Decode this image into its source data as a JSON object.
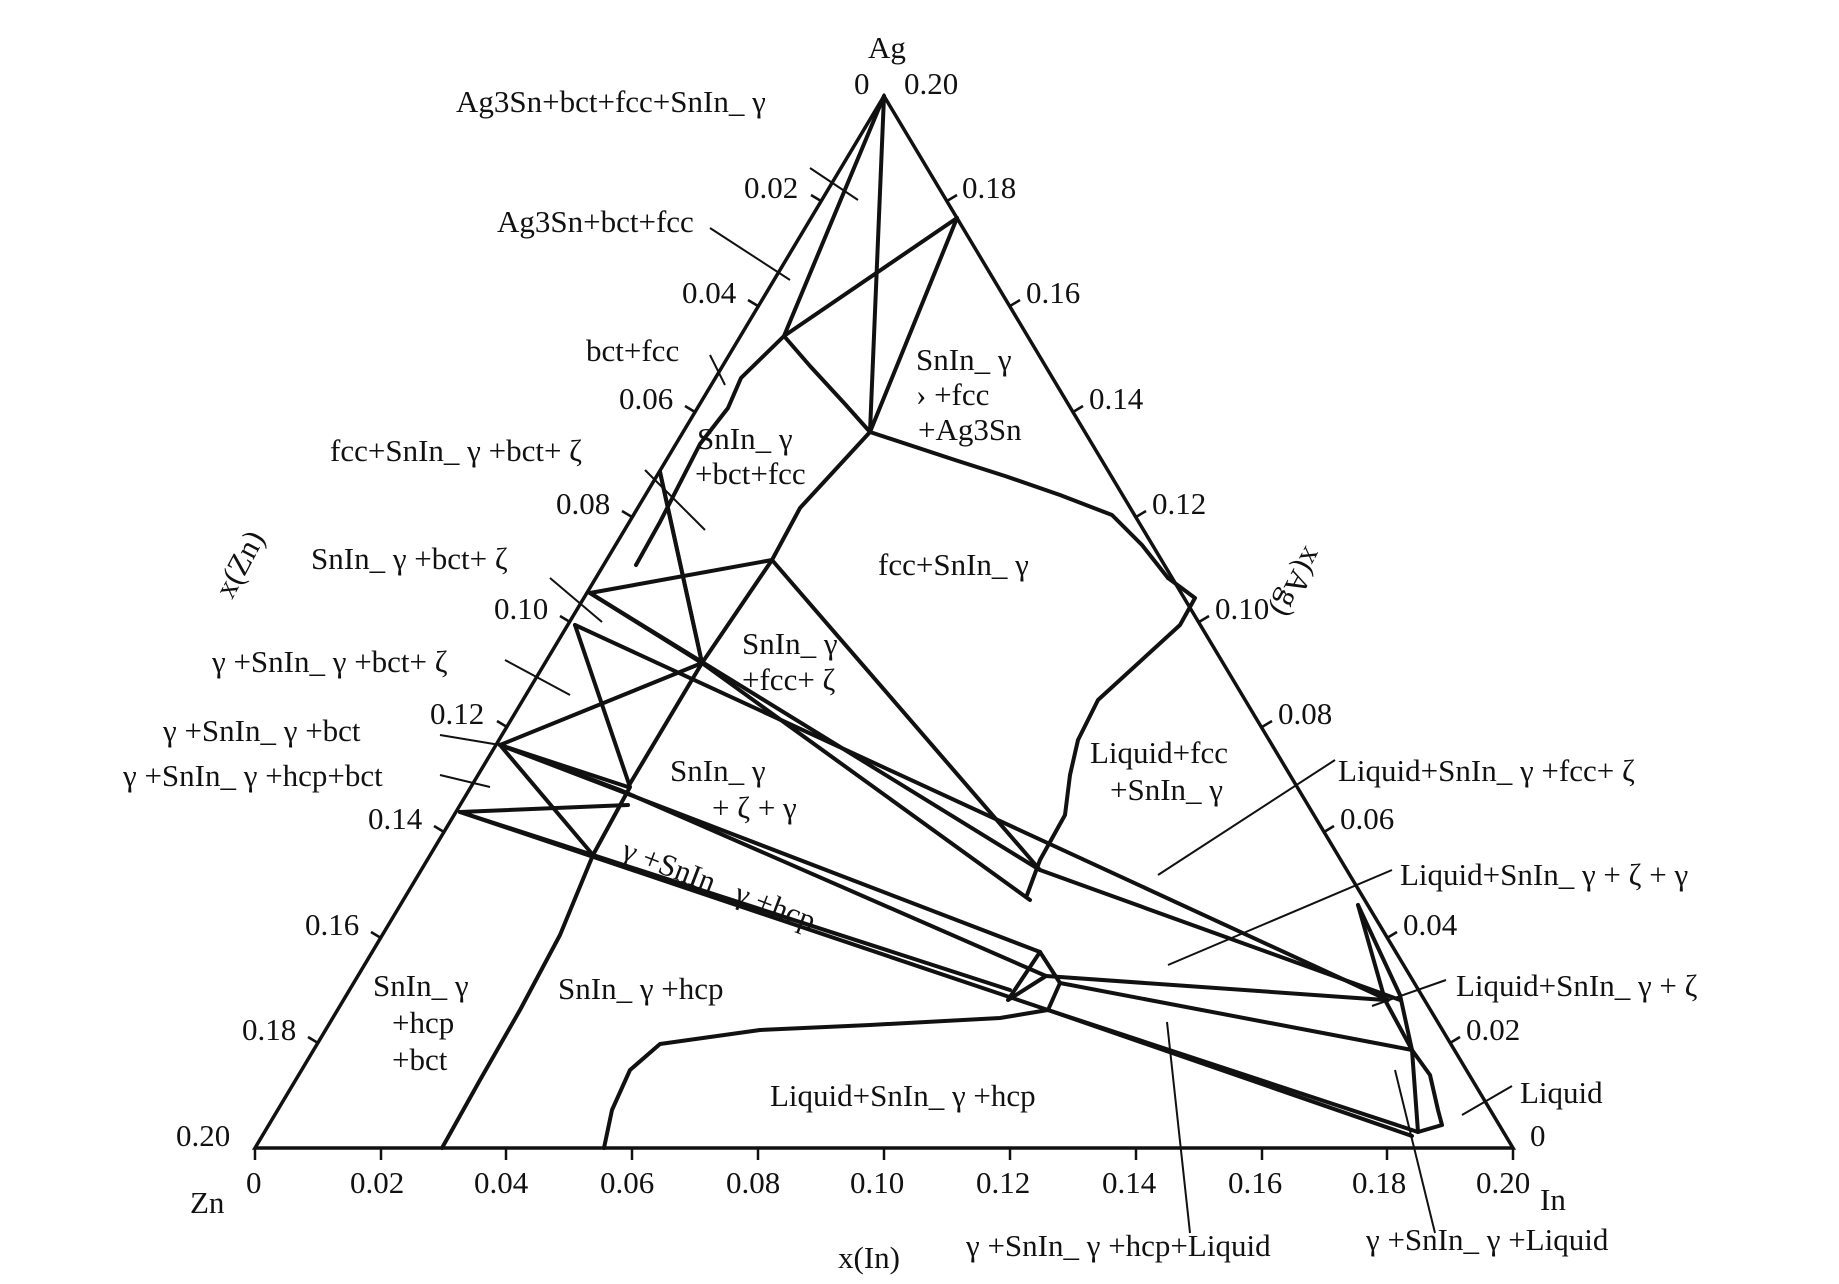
{
  "corners": {
    "top": "Ag",
    "left": "Zn",
    "right": "In"
  },
  "axis_titles": {
    "bottom": "x(In)",
    "left": "x(Zn)",
    "right": "x(Ag)"
  },
  "ticks": {
    "bottom": [
      "0",
      "0.02",
      "0.04",
      "0.06",
      "0.08",
      "0.10",
      "0.12",
      "0.14",
      "0.16",
      "0.18",
      "0.20"
    ],
    "left": [
      "0",
      "0.02",
      "0.04",
      "0.06",
      "0.08",
      "0.10",
      "0.12",
      "0.14",
      "0.16",
      "0.18",
      "0.20"
    ],
    "right": [
      "0.20",
      "0.18",
      "0.16",
      "0.14",
      "0.12",
      "0.10",
      "0.08",
      "0.06",
      "0.04",
      "0.02",
      "0"
    ]
  },
  "regions": {
    "ag3sn_bct_fcc_snin_gamma": "Ag3Sn+bct+fcc+SnIn_ γ",
    "ag3sn_bct_fcc": "Ag3Sn+bct+fcc",
    "bct_fcc": "bct+fcc",
    "fcc_snin_bct_zeta": "fcc+SnIn_ γ +bct+ ζ",
    "snin_bct_zeta": "SnIn_ γ +bct+ ζ",
    "g_snin_bct_zeta": "γ +SnIn_ γ +bct+ ζ",
    "g_snin_bct": "γ +SnIn_ γ +bct",
    "g_snin_hcp_bct": "γ +SnIn_ γ +hcp+bct",
    "snin_fcc_ag3sn": [
      "SnIn_ γ",
      "› +fcc",
      "+Ag3Sn"
    ],
    "snin_bct_fcc": [
      "SnIn_ γ",
      "+bct+fcc"
    ],
    "fcc_snin": "fcc+SnIn_ γ",
    "snin_fcc_zeta": [
      "SnIn_ γ",
      "+fcc+ ζ"
    ],
    "snin_zeta_gamma": [
      "SnIn_ γ",
      "+ ζ + γ"
    ],
    "g_snin_hcp_band": "γ +SnIn_ γ +hcp",
    "liquid_fcc_snin": [
      "Liquid+fcc",
      "+SnIn_ γ"
    ],
    "snin_hcp_bct": [
      "SnIn_ γ",
      "+hcp",
      "+bct"
    ],
    "snin_hcp": "SnIn_ γ +hcp",
    "liquid_snin_hcp": "Liquid+SnIn_ γ +hcp",
    "liquid_snin_fcc_zeta": "Liquid+SnIn_ γ +fcc+ ζ",
    "liquid_snin_zeta_gamma": "Liquid+SnIn_ γ + ζ + γ",
    "liquid_snin_zeta": "Liquid+SnIn_ γ + ζ",
    "liquid": "Liquid",
    "g_snin_hcp_liquid": "γ +SnIn_ γ +hcp+Liquid",
    "g_snin_liquid": "γ +SnIn_ γ +Liquid"
  }
}
